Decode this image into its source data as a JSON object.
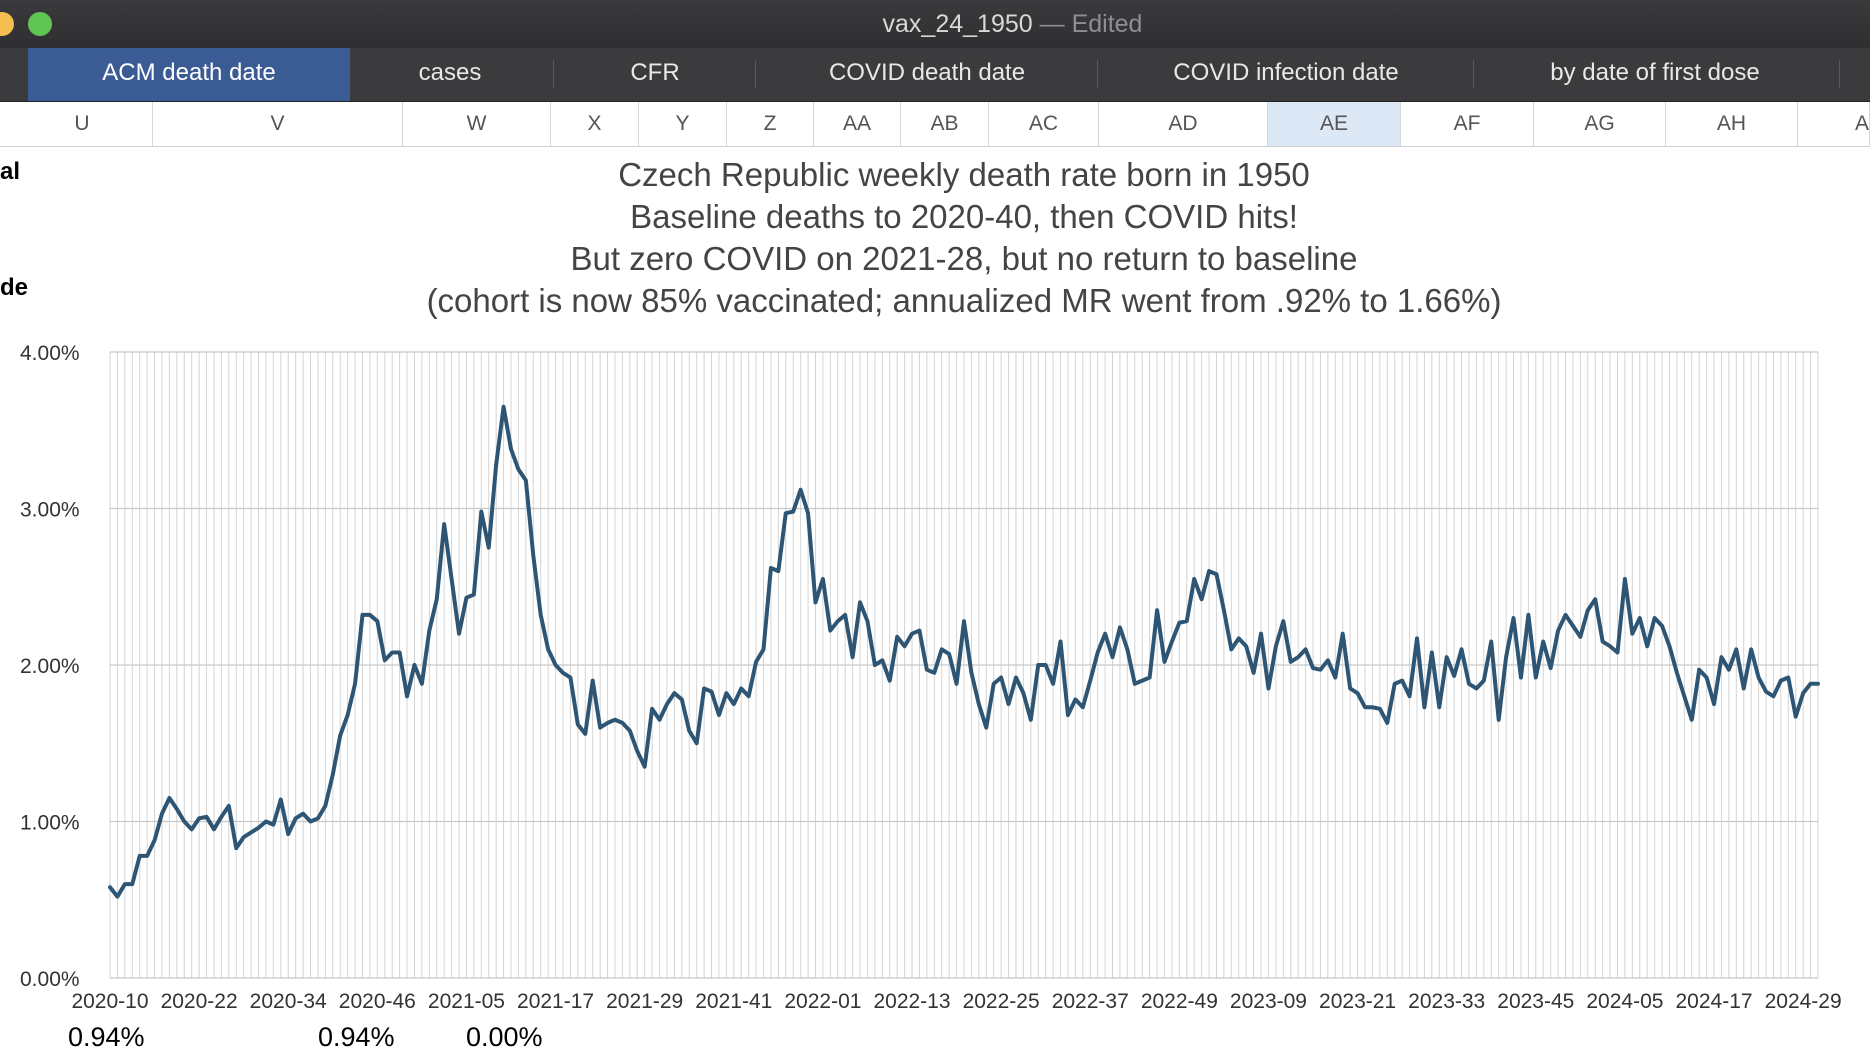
{
  "window": {
    "title": "vax_24_1950",
    "status": "— Edited"
  },
  "tabs": [
    {
      "label": "ACM death date",
      "active": true
    },
    {
      "label": "cases",
      "active": false
    },
    {
      "label": "CFR",
      "active": false
    },
    {
      "label": "COVID death date",
      "active": false
    },
    {
      "label": "COVID infection date",
      "active": false
    },
    {
      "label": "by date of first dose",
      "active": false
    }
  ],
  "columns": [
    "U",
    "V",
    "W",
    "X",
    "Y",
    "Z",
    "AA",
    "AB",
    "AC",
    "AD",
    "AE",
    "AF",
    "AG",
    "AH",
    "A"
  ],
  "selected_column": "AE",
  "sheet": {
    "left_fragment_1": "al",
    "left_fragment_2": "de",
    "bottom_values": [
      "0.94%",
      "0.94%",
      "0.00%"
    ]
  },
  "colors": {
    "line": "#2e5674",
    "grid": "#d4d4d4",
    "active_tab": "#3b5b94"
  },
  "chart_data": {
    "type": "line",
    "title_lines": [
      "Czech Republic weekly death rate born in 1950",
      "Baseline deaths to 2020-40, then COVID hits!",
      "But zero COVID on 2021-28, but no return to baseline",
      "(cohort is now 85% vaccinated; annualized MR went from .92% to 1.66%)"
    ],
    "xlabel": "",
    "ylabel": "",
    "ylim": [
      0,
      4
    ],
    "y_ticks": [
      "0.00%",
      "1.00%",
      "2.00%",
      "3.00%",
      "4.00%"
    ],
    "x_tick_labels": [
      "2020-10",
      "2020-22",
      "2020-34",
      "2020-46",
      "2021-05",
      "2021-17",
      "2021-29",
      "2021-41",
      "2022-01",
      "2022-13",
      "2022-25",
      "2022-37",
      "2022-49",
      "2023-09",
      "2023-21",
      "2023-33",
      "2023-45",
      "2024-05",
      "2024-17",
      "2024-29"
    ],
    "x_tick_interval_weeks": 12,
    "grid": "vertical lines every week, horizontal at each tick",
    "series": [
      {
        "values": [
          0.58,
          0.52,
          0.6,
          0.6,
          0.78,
          0.78,
          0.88,
          1.05,
          1.15,
          1.08,
          1.0,
          0.95,
          1.02,
          1.03,
          0.95,
          1.03,
          1.1,
          0.83,
          0.9,
          0.93,
          0.96,
          1.0,
          0.98,
          1.14,
          0.92,
          1.02,
          1.05,
          1.0,
          1.02,
          1.1,
          1.3,
          1.55,
          1.68,
          1.88,
          2.32,
          2.32,
          2.28,
          2.03,
          2.08,
          2.08,
          1.8,
          2.0,
          1.88,
          2.22,
          2.42,
          2.9,
          2.55,
          2.2,
          2.43,
          2.45,
          2.98,
          2.75,
          3.28,
          3.65,
          3.38,
          3.25,
          3.18,
          2.7,
          2.32,
          2.1,
          2.0,
          1.95,
          1.92,
          1.62,
          1.56,
          1.9,
          1.6,
          1.63,
          1.65,
          1.63,
          1.58,
          1.45,
          1.35,
          1.72,
          1.65,
          1.75,
          1.82,
          1.78,
          1.58,
          1.5,
          1.85,
          1.83,
          1.68,
          1.82,
          1.75,
          1.85,
          1.8,
          2.02,
          2.1,
          2.62,
          2.6,
          2.97,
          2.98,
          3.12,
          2.97,
          2.4,
          2.55,
          2.22,
          2.28,
          2.32,
          2.05,
          2.4,
          2.28,
          2.0,
          2.03,
          1.9,
          2.18,
          2.12,
          2.2,
          2.22,
          1.97,
          1.95,
          2.1,
          2.07,
          1.88,
          2.28,
          1.95,
          1.75,
          1.6,
          1.88,
          1.92,
          1.75,
          1.92,
          1.82,
          1.65,
          2.0,
          2.0,
          1.88,
          2.15,
          1.68,
          1.78,
          1.73,
          1.9,
          2.08,
          2.2,
          2.05,
          2.24,
          2.1,
          1.88,
          1.9,
          1.92,
          2.35,
          2.02,
          2.15,
          2.27,
          2.28,
          2.55,
          2.42,
          2.6,
          2.58,
          2.35,
          2.1,
          2.17,
          2.12,
          1.95,
          2.2,
          1.85,
          2.12,
          2.28,
          2.02,
          2.05,
          2.1,
          1.98,
          1.97,
          2.03,
          1.92,
          2.2,
          1.85,
          1.82,
          1.73,
          1.73,
          1.72,
          1.63,
          1.88,
          1.9,
          1.8,
          2.17,
          1.73,
          2.08,
          1.73,
          2.05,
          1.93,
          2.1,
          1.88,
          1.85,
          1.9,
          2.15,
          1.65,
          2.05,
          2.3,
          1.92,
          2.32,
          1.92,
          2.15,
          1.98,
          2.22,
          2.32,
          2.25,
          2.18,
          2.35,
          2.42,
          2.15,
          2.12,
          2.08,
          2.55,
          2.2,
          2.3,
          2.12,
          2.3,
          2.25,
          2.12,
          1.95,
          1.8,
          1.65,
          1.97,
          1.92,
          1.75,
          2.05,
          1.97,
          2.1,
          1.85,
          2.1,
          1.92,
          1.83,
          1.8,
          1.9,
          1.92,
          1.67,
          1.82,
          1.88,
          1.88
        ]
      }
    ]
  }
}
